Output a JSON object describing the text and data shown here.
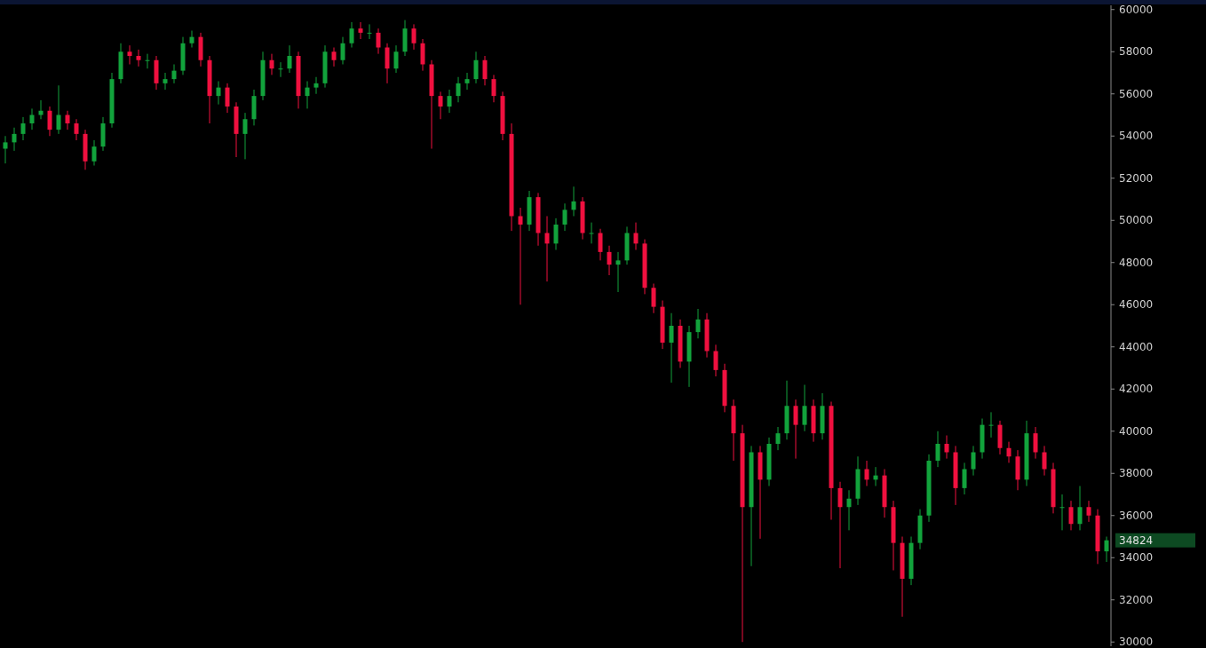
{
  "chart_data": {
    "type": "candlestick",
    "colors": [
      "#12a33c",
      "#12a33c",
      "#12a33c",
      "#12a33c",
      "#12a33c",
      "#f0103f",
      "#12a33c",
      "#f0103f",
      "#f0103f",
      "#f0103f",
      "#12a33c",
      "#12a33c",
      "#12a33c",
      "#12a33c",
      "#f0103f",
      "#f0103f",
      "#12a33c",
      "#f0103f",
      "#12a33c",
      "#12a33c",
      "#12a33c",
      "#12a33c",
      "#f0103f",
      "#f0103f",
      "#12a33c",
      "#f0103f",
      "#f0103f",
      "#12a33c",
      "#12a33c",
      "#12a33c",
      "#f0103f",
      "#12a33c",
      "#12a33c",
      "#f0103f",
      "#12a33c",
      "#12a33c",
      "#12a33c",
      "#f0103f",
      "#12a33c",
      "#12a33c",
      "#f0103f",
      "#12a33c",
      "#f0103f",
      "#f0103f",
      "#12a33c",
      "#12a33c",
      "#f0103f",
      "#f0103f",
      "#f0103f",
      "#f0103f",
      "#12a33c",
      "#12a33c",
      "#12a33c",
      "#12a33c",
      "#f0103f",
      "#f0103f",
      "#f0103f",
      "#f0103f",
      "#f0103f",
      "#12a33c",
      "#f0103f",
      "#f0103f",
      "#12a33c",
      "#12a33c",
      "#12a33c",
      "#f0103f",
      "#12a33c",
      "#f0103f",
      "#f0103f",
      "#12a33c",
      "#12a33c",
      "#f0103f",
      "#f0103f",
      "#f0103f",
      "#f0103f",
      "#12a33c",
      "#f0103f",
      "#12a33c",
      "#12a33c",
      "#f0103f",
      "#f0103f",
      "#f0103f",
      "#f0103f",
      "#f0103f",
      "#12a33c",
      "#f0103f",
      "#12a33c",
      "#12a33c",
      "#12a33c",
      "#f0103f",
      "#12a33c",
      "#f0103f",
      "#12a33c",
      "#f0103f",
      "#f0103f",
      "#12a33c",
      "#12a33c",
      "#f0103f",
      "#12a33c",
      "#f0103f",
      "#f0103f",
      "#f0103f",
      "#12a33c",
      "#12a33c",
      "#12a33c",
      "#12a33c",
      "#f0103f",
      "#f0103f",
      "#12a33c",
      "#12a33c",
      "#12a33c",
      "#12a33c",
      "#f0103f",
      "#f0103f",
      "#f0103f",
      "#12a33c",
      "#f0103f",
      "#f0103f",
      "#f0103f",
      "#12a33c",
      "#f0103f",
      "#12a33c",
      "#f0103f",
      "#f0103f",
      "#12a33c"
    ],
    "ylim": [
      29800,
      60200
    ],
    "yticks": [
      30000,
      32000,
      34000,
      36000,
      38000,
      40000,
      42000,
      44000,
      46000,
      48000,
      50000,
      52000,
      54000,
      56000,
      58000,
      60000
    ],
    "annotations": [
      "34824"
    ],
    "categories": [
      null,
      null,
      null,
      null,
      null,
      null,
      null,
      null,
      null,
      null,
      null,
      null,
      null,
      null,
      null,
      null,
      null,
      null,
      null,
      null,
      null,
      null,
      null,
      null,
      null,
      null,
      null,
      null,
      null,
      null,
      null,
      null,
      null,
      null,
      null,
      null,
      null,
      null,
      null,
      null,
      null,
      null,
      null,
      null,
      null,
      null,
      null,
      null,
      null,
      null,
      null,
      null,
      null,
      null,
      null,
      null,
      null,
      null,
      null,
      null,
      null,
      null,
      null,
      null,
      null,
      null,
      null,
      null,
      null,
      null,
      null,
      null,
      null,
      null,
      null,
      null,
      null,
      null,
      null,
      null,
      null,
      null,
      null,
      null,
      null,
      null,
      null,
      null,
      null,
      null,
      null,
      null,
      null,
      null,
      null,
      null,
      null,
      null,
      null,
      null,
      null,
      null,
      null,
      null,
      null,
      null,
      null,
      null,
      null,
      null,
      null,
      null,
      null,
      null,
      null,
      null,
      null,
      null,
      null,
      null,
      null,
      null,
      null,
      null,
      null
    ],
    "ohlc": [
      [
        53400,
        54000,
        52700,
        53700
      ],
      [
        53700,
        54400,
        53300,
        54100
      ],
      [
        54100,
        54900,
        53800,
        54600
      ],
      [
        54600,
        55300,
        54300,
        55000
      ],
      [
        55000,
        55700,
        54800,
        55200
      ],
      [
        55200,
        55400,
        54000,
        54300
      ],
      [
        54300,
        56400,
        54100,
        55000
      ],
      [
        55000,
        55200,
        54300,
        54600
      ],
      [
        54600,
        54800,
        53800,
        54100
      ],
      [
        54100,
        54300,
        52400,
        52800
      ],
      [
        52800,
        53800,
        52600,
        53500
      ],
      [
        53500,
        54900,
        53300,
        54600
      ],
      [
        54600,
        57000,
        54400,
        56700
      ],
      [
        56700,
        58400,
        56500,
        58000
      ],
      [
        58000,
        58300,
        57400,
        57800
      ],
      [
        57800,
        58100,
        57300,
        57600
      ],
      [
        57600,
        57900,
        57200,
        57600
      ],
      [
        57600,
        57800,
        56200,
        56500
      ],
      [
        56500,
        57000,
        56200,
        56700
      ],
      [
        56700,
        57400,
        56500,
        57100
      ],
      [
        57100,
        58700,
        56900,
        58400
      ],
      [
        58400,
        59000,
        58200,
        58700
      ],
      [
        58700,
        58900,
        57300,
        57600
      ],
      [
        57600,
        57800,
        54600,
        55900
      ],
      [
        55900,
        56600,
        55500,
        56300
      ],
      [
        56300,
        56500,
        55100,
        55400
      ],
      [
        55400,
        55600,
        53000,
        54100
      ],
      [
        54100,
        55100,
        52900,
        54800
      ],
      [
        54800,
        56200,
        54500,
        55900
      ],
      [
        55900,
        58000,
        55700,
        57600
      ],
      [
        57600,
        57900,
        56900,
        57200
      ],
      [
        57200,
        57500,
        56800,
        57200
      ],
      [
        57200,
        58300,
        57000,
        57800
      ],
      [
        57800,
        58000,
        55300,
        55900
      ],
      [
        55900,
        56600,
        55300,
        56300
      ],
      [
        56300,
        56800,
        56000,
        56500
      ],
      [
        56500,
        58300,
        56300,
        58000
      ],
      [
        58000,
        58200,
        57300,
        57600
      ],
      [
        57600,
        58700,
        57400,
        58400
      ],
      [
        58400,
        59400,
        58200,
        59100
      ],
      [
        59100,
        59400,
        58600,
        58900
      ],
      [
        58900,
        59300,
        58600,
        58900
      ],
      [
        58900,
        59100,
        57900,
        58200
      ],
      [
        58200,
        58400,
        56500,
        57200
      ],
      [
        57200,
        58300,
        57000,
        58000
      ],
      [
        58000,
        59500,
        57800,
        59100
      ],
      [
        59100,
        59300,
        58100,
        58400
      ],
      [
        58400,
        58600,
        57100,
        57400
      ],
      [
        57400,
        57600,
        53400,
        55900
      ],
      [
        55900,
        56100,
        54800,
        55400
      ],
      [
        55400,
        56200,
        55100,
        55900
      ],
      [
        55900,
        56800,
        55600,
        56500
      ],
      [
        56500,
        57000,
        56200,
        56700
      ],
      [
        56700,
        58000,
        56500,
        57600
      ],
      [
        57600,
        57800,
        56400,
        56700
      ],
      [
        56700,
        56900,
        55600,
        55900
      ],
      [
        55900,
        56100,
        53800,
        54100
      ],
      [
        54100,
        54600,
        49500,
        50200
      ],
      [
        50200,
        50600,
        46000,
        49800
      ],
      [
        49800,
        51400,
        49500,
        51100
      ],
      [
        51100,
        51300,
        48800,
        49400
      ],
      [
        49400,
        50200,
        47100,
        48900
      ],
      [
        48900,
        50100,
        48600,
        49800
      ],
      [
        49800,
        50800,
        49500,
        50500
      ],
      [
        50500,
        51600,
        50200,
        50900
      ],
      [
        50900,
        51100,
        49100,
        49400
      ],
      [
        49400,
        49900,
        48900,
        49400
      ],
      [
        49400,
        49600,
        48100,
        48500
      ],
      [
        48500,
        48800,
        47400,
        47900
      ],
      [
        47900,
        48500,
        46600,
        48100
      ],
      [
        48100,
        49700,
        47900,
        49400
      ],
      [
        49400,
        49900,
        48600,
        48900
      ],
      [
        48900,
        49100,
        46500,
        46800
      ],
      [
        46800,
        47000,
        45600,
        45900
      ],
      [
        45900,
        46200,
        43900,
        44200
      ],
      [
        44200,
        45600,
        42300,
        45000
      ],
      [
        45000,
        45300,
        43000,
        43300
      ],
      [
        43300,
        45000,
        42100,
        44700
      ],
      [
        44700,
        45800,
        44400,
        45300
      ],
      [
        45300,
        45600,
        43500,
        43800
      ],
      [
        43800,
        44100,
        42600,
        42900
      ],
      [
        42900,
        43200,
        40900,
        41200
      ],
      [
        41200,
        41500,
        38600,
        39900
      ],
      [
        39900,
        40300,
        30000,
        36400
      ],
      [
        36400,
        39300,
        33600,
        39000
      ],
      [
        39000,
        39300,
        34900,
        37700
      ],
      [
        37700,
        39700,
        37400,
        39400
      ],
      [
        39400,
        40200,
        39100,
        39900
      ],
      [
        39900,
        42400,
        39600,
        41200
      ],
      [
        41200,
        41500,
        38700,
        40300
      ],
      [
        40300,
        42200,
        40000,
        41200
      ],
      [
        41200,
        41500,
        39500,
        39900
      ],
      [
        39900,
        41800,
        39600,
        41200
      ],
      [
        41200,
        41400,
        35800,
        37300
      ],
      [
        37300,
        37600,
        33500,
        36400
      ],
      [
        36400,
        37200,
        35300,
        36800
      ],
      [
        36800,
        38800,
        36500,
        38200
      ],
      [
        38200,
        38600,
        37400,
        37700
      ],
      [
        37700,
        38300,
        37400,
        37900
      ],
      [
        37900,
        38200,
        35900,
        36400
      ],
      [
        36400,
        36700,
        33400,
        34700
      ],
      [
        34700,
        35000,
        31200,
        33000
      ],
      [
        33000,
        35000,
        32700,
        34700
      ],
      [
        34700,
        36300,
        34400,
        36000
      ],
      [
        36000,
        38900,
        35700,
        38600
      ],
      [
        38600,
        40000,
        38300,
        39400
      ],
      [
        39400,
        39800,
        38700,
        39000
      ],
      [
        39000,
        39300,
        36500,
        37300
      ],
      [
        37300,
        38500,
        37000,
        38200
      ],
      [
        38200,
        39300,
        37900,
        39000
      ],
      [
        39000,
        40600,
        38700,
        40300
      ],
      [
        40300,
        40900,
        39700,
        40300
      ],
      [
        40300,
        40500,
        38900,
        39200
      ],
      [
        39200,
        39500,
        38500,
        38800
      ],
      [
        38800,
        39100,
        37200,
        37700
      ],
      [
        37700,
        40500,
        37400,
        39900
      ],
      [
        39900,
        40200,
        38700,
        39000
      ],
      [
        39000,
        39300,
        37900,
        38200
      ],
      [
        38200,
        38500,
        36100,
        36400
      ],
      [
        36400,
        37000,
        35300,
        36400
      ],
      [
        36400,
        36700,
        35300,
        35600
      ],
      [
        35600,
        37400,
        35300,
        36400
      ],
      [
        36400,
        36700,
        35700,
        36000
      ],
      [
        36000,
        36300,
        33700,
        34300
      ],
      [
        34300,
        35000,
        33800,
        34824
      ]
    ]
  }
}
